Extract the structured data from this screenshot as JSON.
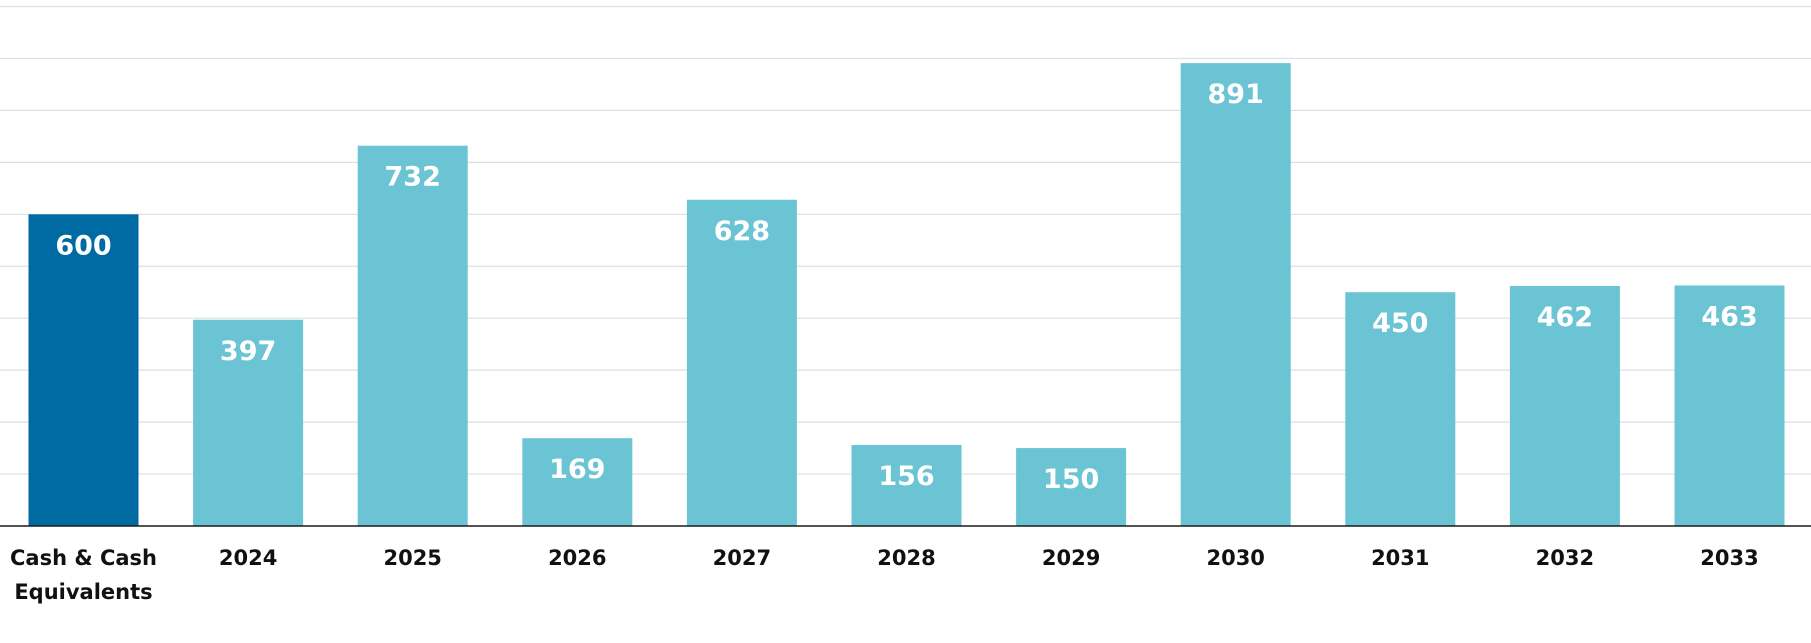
{
  "chart_data": {
    "type": "bar",
    "title": "",
    "xlabel": "",
    "ylabel": "",
    "ylim": [
      0,
      1000
    ],
    "grid": true,
    "gridlines": [
      0,
      100,
      200,
      300,
      400,
      500,
      600,
      700,
      800,
      900,
      1000
    ],
    "categories": [
      [
        "Cash & Cash",
        "Equivalents"
      ],
      [
        "2024"
      ],
      [
        "2025"
      ],
      [
        "2026"
      ],
      [
        "2027"
      ],
      [
        "2028"
      ],
      [
        "2029"
      ],
      [
        "2030"
      ],
      [
        "2031"
      ],
      [
        "2032"
      ],
      [
        "2033"
      ]
    ],
    "values": [
      600,
      397,
      732,
      169,
      628,
      156,
      150,
      891,
      450,
      462,
      463
    ],
    "value_labels": [
      "600",
      "397",
      "732",
      "169",
      "628",
      "156",
      "150",
      "891",
      "450",
      "462",
      "463"
    ],
    "colors": {
      "highlight": "#006ba3",
      "bar": "#6ac4d3",
      "grid": "#dcdfe3",
      "axis": "#1a1a1a"
    },
    "highlight_index": 0
  }
}
